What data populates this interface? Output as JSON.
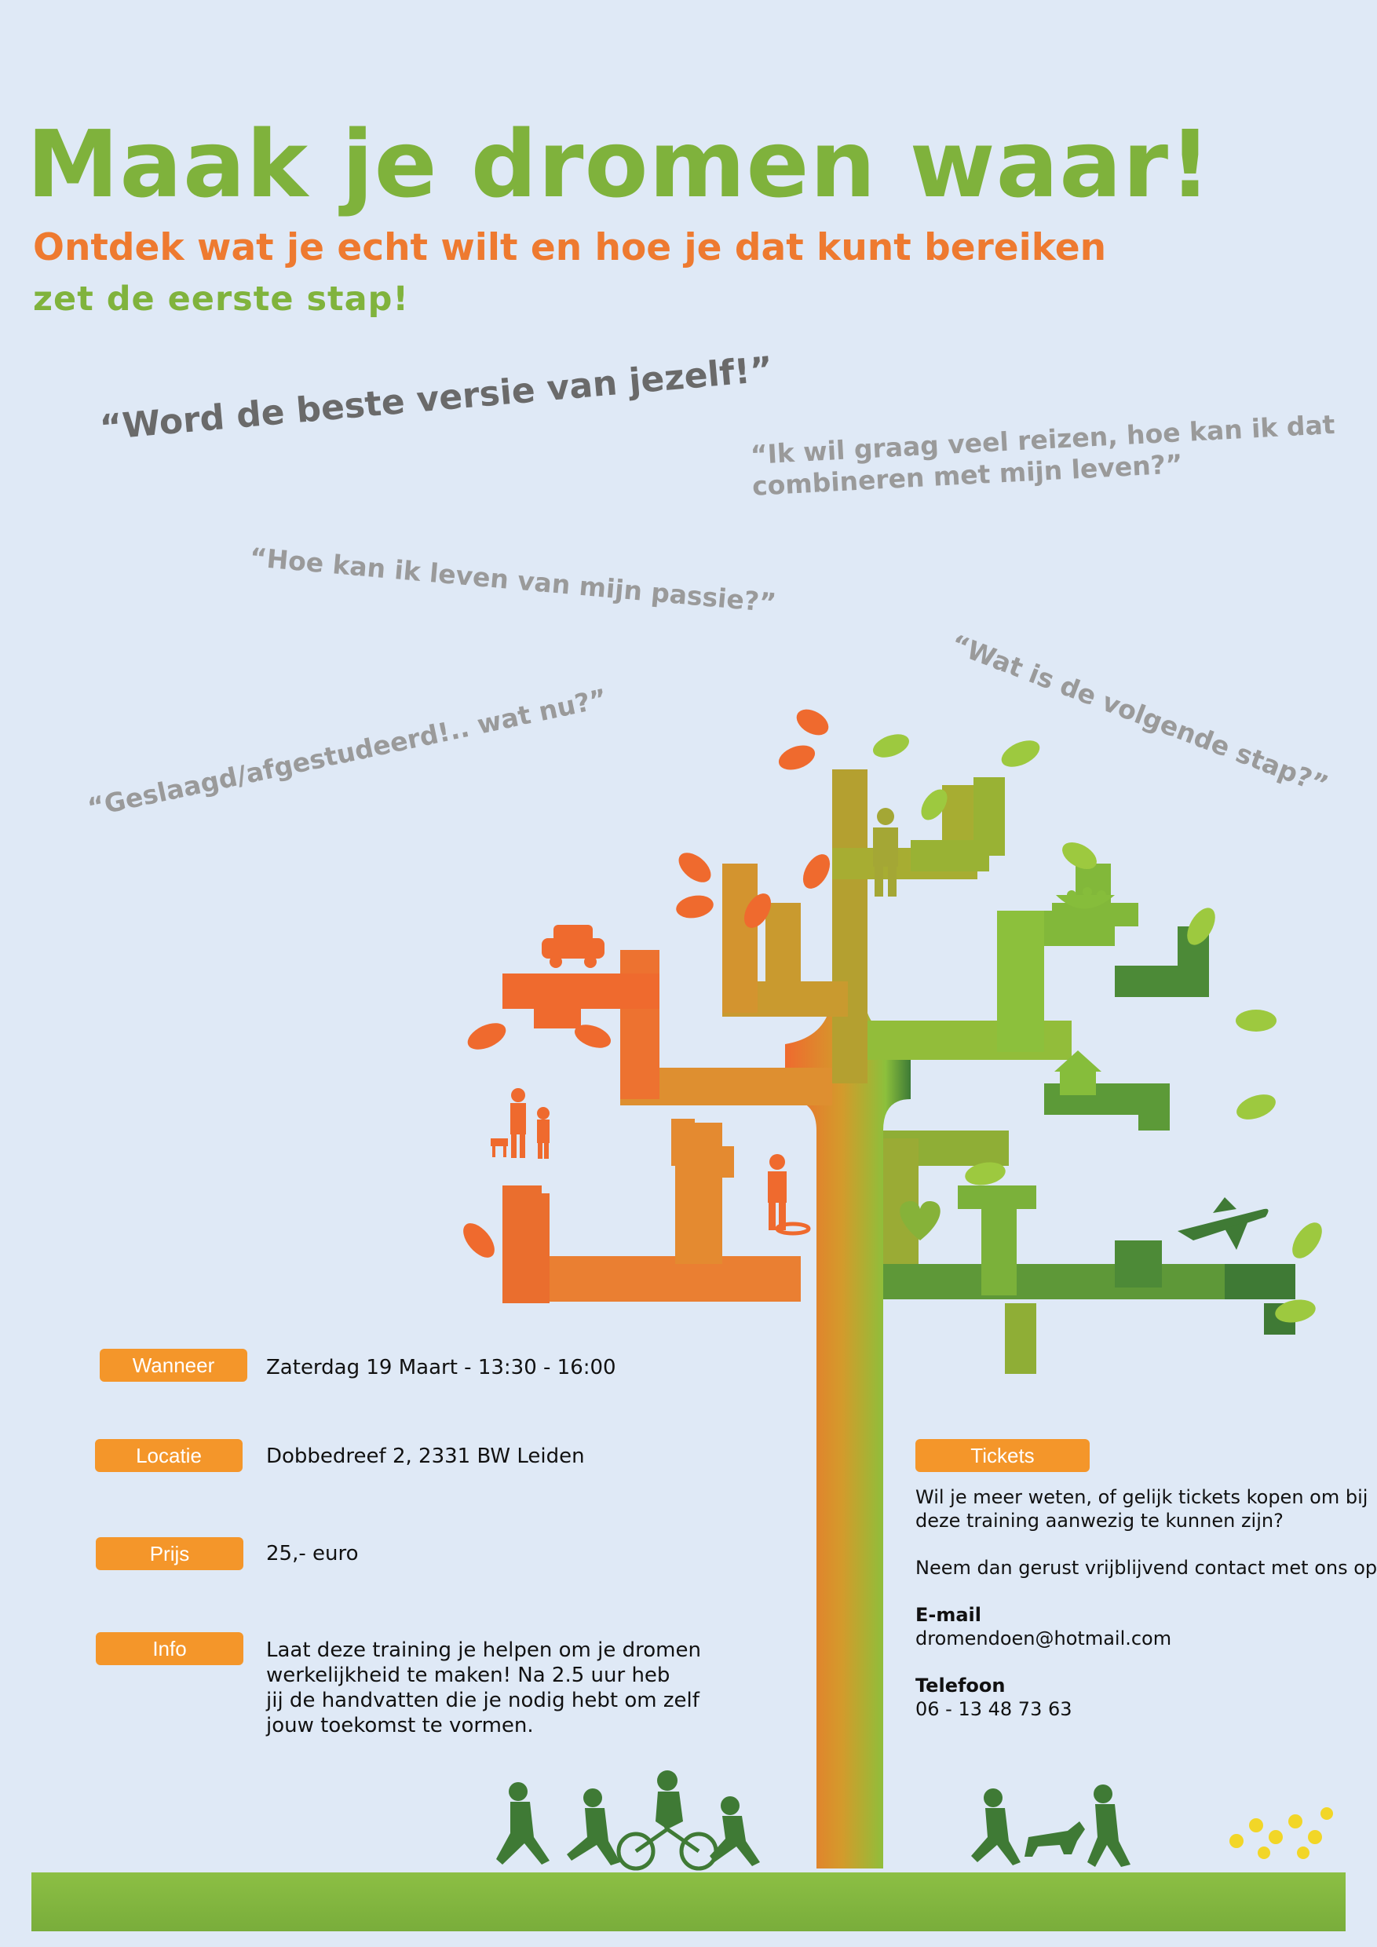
{
  "header": {
    "title": "Maak je dromen waar!",
    "subtitle_line1": "Ontdek wat je echt wilt en hoe je dat kunt bereiken",
    "subtitle_line2": "zet de eerste stap!"
  },
  "quotes": {
    "q1": "“Word de beste versie van jezelf!”",
    "q2_line1": "“Ik wil graag veel reizen, hoe kan ik dat",
    "q2_line2": "combineren met mijn leven?”",
    "q3": "“Hoe kan ik leven van mijn passie?”",
    "q4": "“Wat is de volgende stap?”",
    "q5": "“Geslaagd/afgestudeerd!.. wat nu?”"
  },
  "details": {
    "when_label": "Wanneer",
    "when_value": "Zaterdag 19 Maart - 13:30 - 16:00",
    "location_label": "Locatie",
    "location_value": "Dobbedreef 2, 2331 BW Leiden",
    "price_label": "Prijs",
    "price_value": "25,- euro",
    "info_label": "Info",
    "info_line1": "Laat deze training je helpen om je dromen",
    "info_line2": "werkelijkheid te maken! Na 2.5 uur heb",
    "info_line3": "jij de handvatten die je nodig hebt om zelf",
    "info_line4": "jouw toekomst te vormen."
  },
  "tickets": {
    "label": "Tickets",
    "line1": "Wil je meer weten, of gelijk tickets kopen om bij",
    "line2": "deze training aanwezig te kunnen zijn?",
    "line3": "Neem dan gerust vrijblijvend contact met ons op:",
    "email_label": "E-mail",
    "email_value": "dromendoen@hotmail.com",
    "phone_label": "Telefoon",
    "phone_value": "06 - 13 48 73 63"
  },
  "colors": {
    "green": "#7fb23c",
    "orange": "#ee7a30",
    "tag_orange": "#f4962a",
    "dark_green": "#3f7a35",
    "background": "#dfe9f6"
  },
  "icons": [
    "car-icon",
    "family-icon",
    "firefighter-icon",
    "businessman-icon",
    "nest-icon",
    "house-icon",
    "heart-icon",
    "airplane-icon",
    "leaf-icon",
    "children-silhouette-icon",
    "bicycle-icon",
    "dog-icon",
    "flowers-icon"
  ]
}
